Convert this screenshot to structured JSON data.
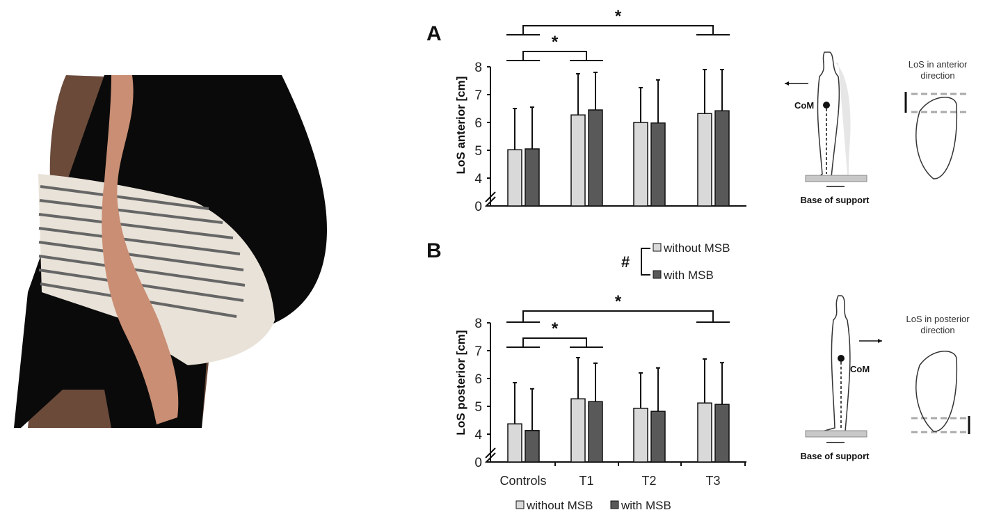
{
  "chart_data": [
    {
      "panel": "A",
      "type": "bar",
      "ylabel": "LoS anterior [cm]",
      "categories": [
        "Controls",
        "T1",
        "T2",
        "T3"
      ],
      "yticks": [
        "0",
        "4",
        "5",
        "6",
        "7",
        "8"
      ],
      "ylim": [
        4,
        8
      ],
      "axis_break": true,
      "series": [
        {
          "name": "without MSB",
          "color": "#d9d9d9",
          "values": [
            5.02,
            6.27,
            6.0,
            6.32
          ],
          "sd": [
            1.48,
            1.48,
            1.25,
            1.58
          ]
        },
        {
          "name": "with MSB",
          "color": "#595959",
          "values": [
            5.05,
            6.45,
            5.98,
            6.42
          ],
          "sd": [
            1.5,
            1.35,
            1.55,
            1.48
          ]
        }
      ],
      "annotations": [
        {
          "text": "*",
          "from": "Controls",
          "to": "T3"
        },
        {
          "text": "*",
          "from": "Controls",
          "to": "T1"
        }
      ]
    },
    {
      "panel": "B",
      "type": "bar",
      "ylabel": "LoS posterior [cm]",
      "categories": [
        "Controls",
        "T1",
        "T2",
        "T3"
      ],
      "yticks": [
        "0",
        "4",
        "5",
        "6",
        "7",
        "8"
      ],
      "ylim": [
        4,
        8
      ],
      "axis_break": true,
      "series": [
        {
          "name": "without MSB",
          "color": "#d9d9d9",
          "values": [
            4.37,
            5.27,
            4.93,
            5.12
          ],
          "sd": [
            1.48,
            1.48,
            1.27,
            1.58
          ]
        },
        {
          "name": "with MSB",
          "color": "#595959",
          "values": [
            4.13,
            5.17,
            4.82,
            5.07
          ],
          "sd": [
            1.5,
            1.38,
            1.56,
            1.5
          ]
        }
      ],
      "annotations": [
        {
          "text": "*",
          "from": "Controls",
          "to": "T3"
        },
        {
          "text": "*",
          "from": "Controls",
          "to": "T1"
        }
      ]
    }
  ],
  "legend_b": {
    "symbol": "#",
    "items": [
      "without MSB",
      "with MSB"
    ]
  },
  "legend_bottom": {
    "items": [
      "without MSB",
      "with MSB"
    ]
  },
  "diagram_a": {
    "com": "CoM",
    "base": "Base of support",
    "los_line1": "LoS in anterior",
    "los_line2": "direction"
  },
  "diagram_b": {
    "com": "CoM",
    "base": "Base of support",
    "los_line1": "LoS in posterior",
    "los_line2": "direction"
  }
}
